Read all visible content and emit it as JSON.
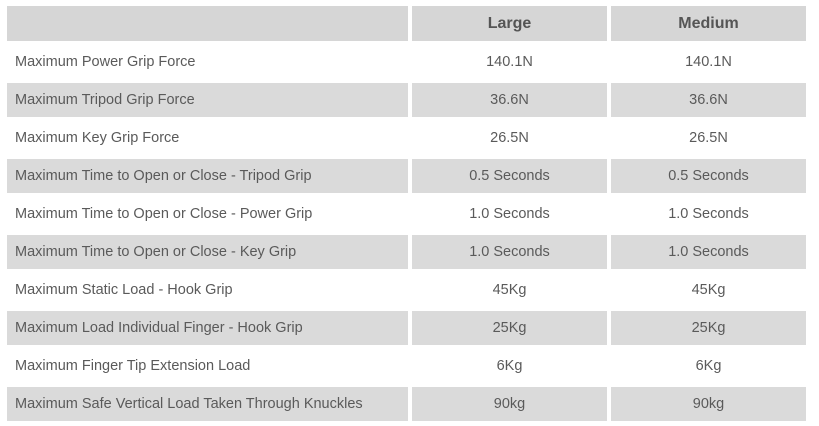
{
  "table": {
    "headers": [
      "",
      "Large",
      "Medium"
    ],
    "rows": [
      {
        "label": "Maximum Power Grip Force",
        "large": "140.1N",
        "medium": "140.1N"
      },
      {
        "label": "Maximum Tripod Grip Force",
        "large": "36.6N",
        "medium": "36.6N"
      },
      {
        "label": "Maximum Key Grip Force",
        "large": "26.5N",
        "medium": "26.5N"
      },
      {
        "label": "Maximum Time to Open or Close - Tripod Grip",
        "large": "0.5 Seconds",
        "medium": "0.5 Seconds"
      },
      {
        "label": "Maximum Time to Open or Close - Power Grip",
        "large": "1.0 Seconds",
        "medium": "1.0 Seconds"
      },
      {
        "label": "Maximum Time to Open or Close - Key Grip",
        "large": "1.0 Seconds",
        "medium": "1.0 Seconds"
      },
      {
        "label": "Maximum Static Load - Hook Grip",
        "large": "45Kg",
        "medium": "45Kg"
      },
      {
        "label": "Maximum Load Individual Finger - Hook Grip",
        "large": "25Kg",
        "medium": "25Kg"
      },
      {
        "label": "Maximum Finger Tip Extension Load",
        "large": "6Kg",
        "medium": "6Kg"
      },
      {
        "label": "Maximum Safe Vertical Load Taken Through Knuckles",
        "large": "90kg",
        "medium": "90kg"
      }
    ]
  },
  "colors": {
    "header_bg": "#d6d6d6",
    "stripe_bg": "#dadada",
    "text": "#5a5a5a"
  }
}
